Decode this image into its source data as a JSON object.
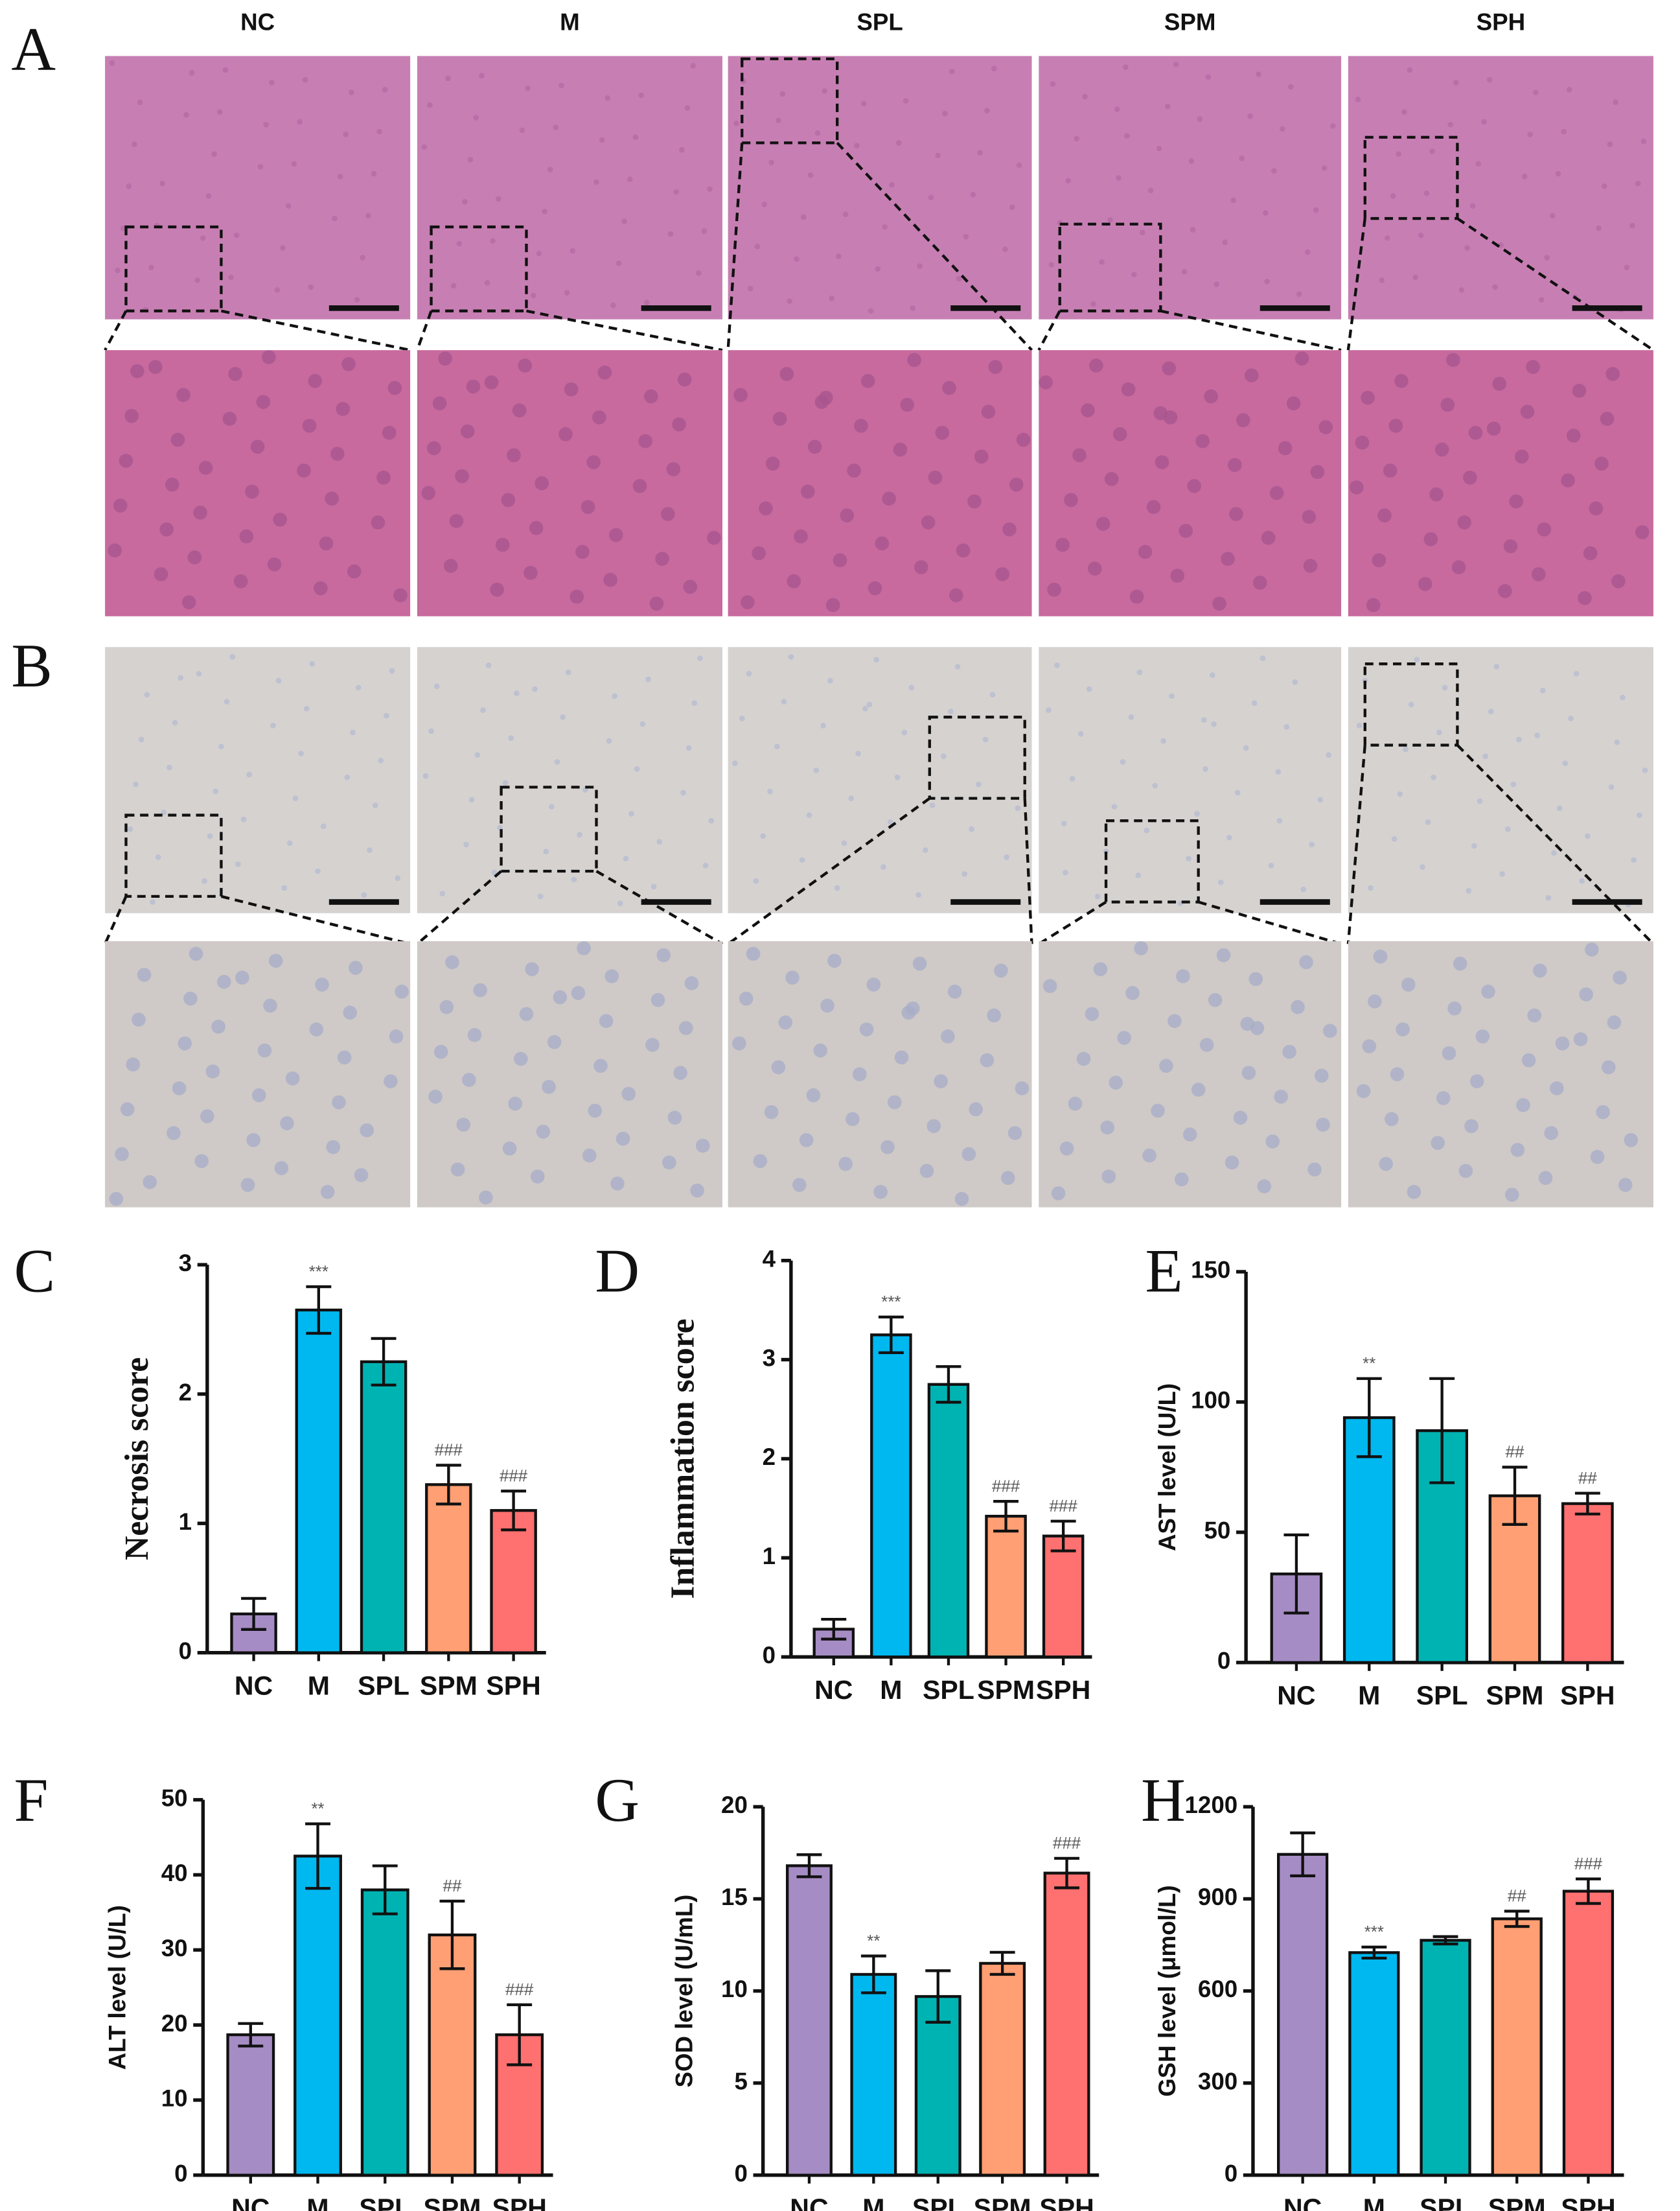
{
  "histology": {
    "panels": [
      "A",
      "B"
    ],
    "columns": [
      "NC",
      "M",
      "SPL",
      "SPM",
      "SPH"
    ]
  },
  "chart_data": [
    {
      "type": "bar",
      "label": "C",
      "ylabel": "Necrosis score",
      "categories": [
        "NC",
        "M",
        "SPL",
        "SPM",
        "SPH"
      ],
      "values": [
        0.3,
        2.65,
        2.25,
        1.3,
        1.1
      ],
      "errors": [
        0.12,
        0.18,
        0.18,
        0.15,
        0.15
      ],
      "annotations": [
        null,
        "***",
        null,
        "###",
        "###"
      ],
      "colors": [
        "#a68cc4",
        "#00b8f0",
        "#00b3b3",
        "#ff9f73",
        "#ff7070"
      ],
      "ylim": [
        0,
        3
      ],
      "yticks": [
        0,
        1,
        2,
        3
      ]
    },
    {
      "type": "bar",
      "label": "D",
      "ylabel": "Inflammation score",
      "categories": [
        "NC",
        "M",
        "SPL",
        "SPM",
        "SPH"
      ],
      "values": [
        0.28,
        3.25,
        2.75,
        1.42,
        1.22
      ],
      "errors": [
        0.1,
        0.18,
        0.18,
        0.15,
        0.15
      ],
      "annotations": [
        null,
        "***",
        null,
        "###",
        "###"
      ],
      "colors": [
        "#a68cc4",
        "#00b8f0",
        "#00b3b3",
        "#ff9f73",
        "#ff7070"
      ],
      "ylim": [
        0,
        4
      ],
      "yticks": [
        0,
        1,
        2,
        3,
        4
      ]
    },
    {
      "type": "bar",
      "label": "E",
      "ylabel": "AST level (U/L)",
      "categories": [
        "NC",
        "M",
        "SPL",
        "SPM",
        "SPH"
      ],
      "values": [
        34,
        94,
        89,
        64,
        61
      ],
      "errors": [
        15,
        15,
        20,
        11,
        4
      ],
      "annotations": [
        null,
        "**",
        null,
        "##",
        "##"
      ],
      "colors": [
        "#a68cc4",
        "#00b8f0",
        "#00b3b3",
        "#ff9f73",
        "#ff7070"
      ],
      "ylim": [
        0,
        150
      ],
      "yticks": [
        0,
        50,
        100,
        150
      ]
    },
    {
      "type": "bar",
      "label": "F",
      "ylabel": "ALT level (U/L)",
      "categories": [
        "NC",
        "M",
        "SPL",
        "SPM",
        "SPH"
      ],
      "values": [
        18.7,
        42.5,
        38,
        32,
        18.7
      ],
      "errors": [
        1.5,
        4.3,
        3.2,
        4.5,
        4
      ],
      "annotations": [
        null,
        "**",
        null,
        "##",
        "###"
      ],
      "colors": [
        "#a68cc4",
        "#00b8f0",
        "#00b3b3",
        "#ff9f73",
        "#ff7070"
      ],
      "ylim": [
        0,
        50
      ],
      "yticks": [
        0,
        10,
        20,
        30,
        40,
        50
      ]
    },
    {
      "type": "bar",
      "label": "G",
      "ylabel": "SOD level (U/mL)",
      "categories": [
        "NC",
        "M",
        "SPL",
        "SPM",
        "SPH"
      ],
      "values": [
        16.8,
        10.9,
        9.7,
        11.5,
        16.4
      ],
      "errors": [
        0.6,
        1,
        1.4,
        0.6,
        0.8
      ],
      "annotations": [
        null,
        "**",
        null,
        null,
        "###"
      ],
      "colors": [
        "#a68cc4",
        "#00b8f0",
        "#00b3b3",
        "#ff9f73",
        "#ff7070"
      ],
      "ylim": [
        0,
        20
      ],
      "yticks": [
        0,
        5,
        10,
        15,
        20
      ]
    },
    {
      "type": "bar",
      "label": "H",
      "ylabel": "GSH level (μmol/L)",
      "categories": [
        "NC",
        "M",
        "SPL",
        "SPM",
        "SPH"
      ],
      "values": [
        1045,
        725,
        765,
        835,
        925
      ],
      "errors": [
        70,
        18,
        12,
        25,
        40
      ],
      "annotations": [
        null,
        "***",
        null,
        "##",
        "###"
      ],
      "colors": [
        "#a68cc4",
        "#00b8f0",
        "#00b3b3",
        "#ff9f73",
        "#ff7070"
      ],
      "ylim": [
        0,
        1200
      ],
      "yticks": [
        0,
        300,
        600,
        900,
        1200
      ]
    }
  ]
}
